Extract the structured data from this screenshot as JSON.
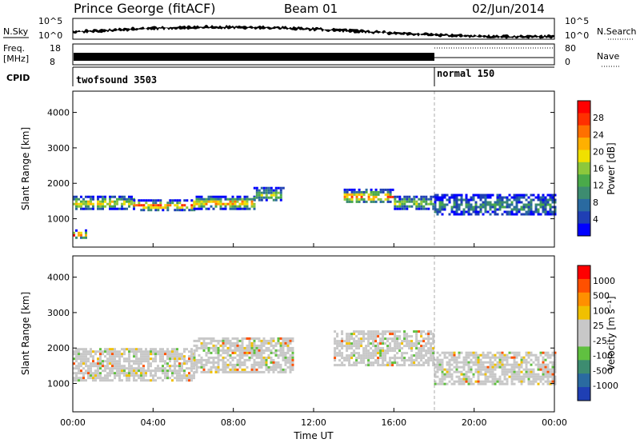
{
  "header": {
    "station": "Prince George (fitACF)",
    "beam": "Beam 01",
    "date": "02/Jun/2014"
  },
  "strips": {
    "nsky_label": "N.Sky",
    "nsky_ticks": [
      "10^5",
      "10^0"
    ],
    "nsearch_label": "N.Search",
    "nsearch_ticks": [
      "10^5",
      "10^0"
    ],
    "freq_label_1": "Freq.",
    "freq_label_2": "[MHz]",
    "freq_ticks": [
      "18",
      "8"
    ],
    "nave_label": "Nave",
    "nave_ticks": [
      "80",
      "0"
    ],
    "cpid_label": "CPID",
    "cpid_segments": [
      {
        "name": "twofsound 3503",
        "start_hour": 0,
        "end_hour": 18.0
      },
      {
        "name": "normal 150",
        "start_hour": 18.0,
        "end_hour": 24
      }
    ]
  },
  "chart_data": [
    {
      "type": "heatmap",
      "title": "",
      "xlabel": "Time UT",
      "ylabel": "Slant Range [km]",
      "x_ticks": [
        "00:00",
        "04:00",
        "08:00",
        "12:00",
        "16:00",
        "20:00",
        "00:00"
      ],
      "xlim_hours": [
        0,
        24
      ],
      "y_ticks": [
        1000,
        2000,
        3000,
        4000
      ],
      "ylim": [
        200,
        4600
      ],
      "colorbar": {
        "label": "Power [dB]",
        "ticks": [
          "4",
          "8",
          "12",
          "16",
          "20",
          "24",
          "28"
        ],
        "colors": [
          "#0000ff",
          "#1f3fb4",
          "#2a6aa0",
          "#3d8c70",
          "#4aaa4a",
          "#8cc83c",
          "#f0e000",
          "#ffb000",
          "#ff7000",
          "#ff3000",
          "#ff0000"
        ]
      },
      "bands": [
        {
          "start_hour": 0,
          "end_hour": 3,
          "range_km": [
            1300,
            1650
          ],
          "level": 0.7
        },
        {
          "start_hour": 3,
          "end_hour": 6,
          "range_km": [
            1250,
            1550
          ],
          "level": 0.85
        },
        {
          "start_hour": 6,
          "end_hour": 9,
          "range_km": [
            1300,
            1650
          ],
          "level": 0.8
        },
        {
          "start_hour": 9,
          "end_hour": 10.5,
          "range_km": [
            1500,
            1900
          ],
          "level": 0.55
        },
        {
          "start_hour": 13.5,
          "end_hour": 16,
          "range_km": [
            1450,
            1850
          ],
          "level": 0.8
        },
        {
          "start_hour": 16,
          "end_hour": 18,
          "range_km": [
            1300,
            1650
          ],
          "level": 0.55
        },
        {
          "start_hour": 18,
          "end_hour": 24,
          "range_km": [
            1100,
            1700
          ],
          "level": 0.3
        },
        {
          "start_hour": 0,
          "end_hour": 0.6,
          "range_km": [
            450,
            700
          ],
          "level": 0.95
        }
      ]
    },
    {
      "type": "heatmap",
      "title": "",
      "xlabel": "Time UT",
      "ylabel": "Slant Range [km]",
      "x_ticks": [
        "00:00",
        "04:00",
        "08:00",
        "12:00",
        "16:00",
        "20:00",
        "00:00"
      ],
      "xlim_hours": [
        0,
        24
      ],
      "y_ticks": [
        1000,
        2000,
        3000,
        4000
      ],
      "ylim": [
        200,
        4600
      ],
      "colorbar": {
        "label": "Velocity [m s⁻¹]",
        "ticks": [
          "1000",
          "500",
          "100",
          "25",
          "-25",
          "-100",
          "-500",
          "-1000"
        ],
        "colors": [
          "#1f3fb4",
          "#2a6aa0",
          "#3d8c70",
          "#60c040",
          "#c8c8c8",
          "#c8c8c8",
          "#f0c000",
          "#ff9000",
          "#ff5000",
          "#ff0000"
        ]
      },
      "bands": [
        {
          "start_hour": 0,
          "end_hour": 6,
          "range_km": [
            1100,
            2000
          ],
          "level": 0.5
        },
        {
          "start_hour": 6,
          "end_hour": 11,
          "range_km": [
            1300,
            2300
          ],
          "level": 0.5
        },
        {
          "start_hour": 13,
          "end_hour": 18,
          "range_km": [
            1500,
            2500
          ],
          "level": 0.5
        },
        {
          "start_hour": 18,
          "end_hour": 24,
          "range_km": [
            1000,
            1900
          ],
          "level": 0.5
        }
      ]
    }
  ]
}
